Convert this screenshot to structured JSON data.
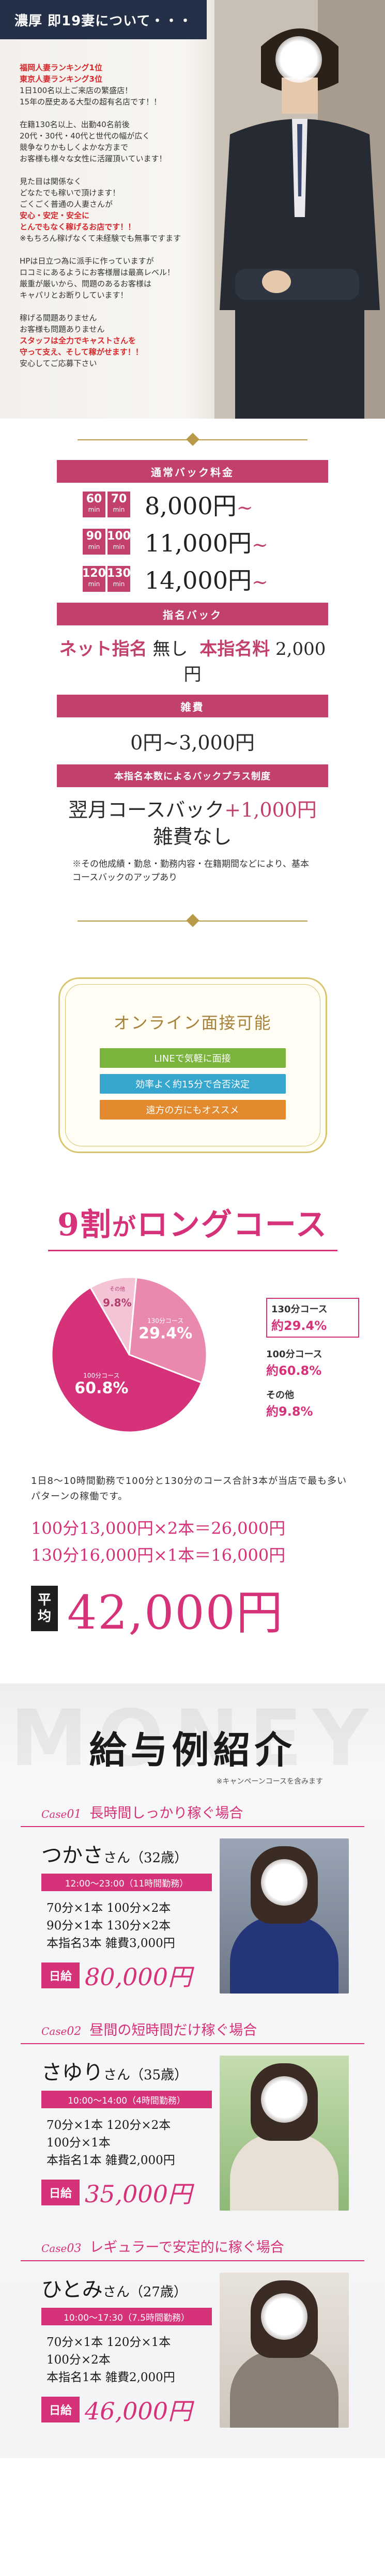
{
  "hero": {
    "title": "濃厚 即19妻について・・・",
    "lines": [
      {
        "text": "福岡人妻ランキング1位",
        "red": true
      },
      {
        "text": "東京人妻ランキング3位",
        "red": true
      },
      {
        "text": "1日100名以上ご来店の繁盛店！",
        "red": false
      },
      {
        "text": "15年の歴史ある大型の超有名店です！！",
        "red": false
      },
      {
        "text": "",
        "red": false
      },
      {
        "text": "在籍130名以上、出勤40名前後",
        "red": false
      },
      {
        "text": "20代・30代・40代と世代の幅が広く",
        "red": false
      },
      {
        "text": "競争なりかもしくよかな方まで",
        "red": false
      },
      {
        "text": "お客様も様々な女性に活躍頂いています！",
        "red": false
      },
      {
        "text": "",
        "red": false
      },
      {
        "text": "見た目は関係なく",
        "red": false
      },
      {
        "text": "どなたでも稼いで頂けます！",
        "red": false
      },
      {
        "text": "ごくごく普通の人妻さんが",
        "red": false
      },
      {
        "text": "安心・安定・安全に",
        "red": true
      },
      {
        "text": "とんでもなく稼げるお店です！！",
        "red": true
      },
      {
        "text": "※もちろん稼げなくて未経験でも無事ですます",
        "red": false
      },
      {
        "text": "",
        "red": false
      },
      {
        "text": "HPは日立つ為に派手に作っていますが",
        "red": false
      },
      {
        "text": "ロコミにあるようにお客様層は最高レベル！",
        "red": false
      },
      {
        "text": "厳重が厳いから、問題のあるお客様は",
        "red": false
      },
      {
        "text": "キャパリとお断りしています！",
        "red": false
      },
      {
        "text": "",
        "red": false
      },
      {
        "text": "稼げる間題ありません",
        "red": false
      },
      {
        "text": "お客様も問題ありません",
        "red": false
      },
      {
        "text": "スタッフは全力でキャストさんを",
        "red": true
      },
      {
        "text": "守って支え、そして稼がせます！！",
        "red": true
      },
      {
        "text": "安心してご応募下さい",
        "red": false
      }
    ]
  },
  "pricing": {
    "basic_header": "通常バック料金",
    "rows": [
      {
        "m1": "60",
        "m2": "70",
        "unit": "min",
        "price": "8,000円",
        "tilde": "~"
      },
      {
        "m1": "90",
        "m2": "100",
        "unit": "min",
        "price": "11,000円",
        "tilde": "~"
      },
      {
        "m1": "120",
        "m2": "130",
        "unit": "min",
        "price": "14,000円",
        "tilde": "~"
      }
    ],
    "nomination_header": "指名バック",
    "nomination_text_a": "ネット指名",
    "nomination_text_b": "無し",
    "nomination_text_c": "本指名料",
    "nomination_text_d": "2,000円",
    "misc_header": "雑費",
    "misc_text": "0円~3,000円",
    "bonus_header": "本指名本数によるバックプラス制度",
    "bonus_line1_a": "翌月コースバック",
    "bonus_line1_b": "+1,000円",
    "bonus_line2": "雑費なし",
    "note": "※その他成績・勤怠・勤務内容・在籍期間などにより、基本コースバックのアップあり"
  },
  "interview": {
    "title": "オンライン面接可能",
    "chips": [
      "LINEで気軽に面接",
      "効率よく約15分で合否決定",
      "遠方の方にもオススメ"
    ]
  },
  "long_course": {
    "title_big": "9割",
    "title_small": "が",
    "title_rest": "ロングコース",
    "legend": [
      {
        "label": "130分コース",
        "value": "約29.4%"
      },
      {
        "label": "100分コース",
        "value": "約60.8%"
      },
      {
        "label": "その他",
        "value": "約9.8%"
      }
    ],
    "description": "1日8～10時間勤務で100分と130分のコース合計3本が当店で最も多いパターンの稼働です。",
    "calc_line1": "100分13,000円×2本＝26,000円",
    "calc_line2": "130分16,000円×1本＝16,000円",
    "avg_badge_1": "平",
    "avg_badge_2": "均",
    "avg_amount": "42,000円"
  },
  "chart_data": {
    "type": "pie",
    "categories": [
      "100分コース",
      "130分コース",
      "その他"
    ],
    "values": [
      60.8,
      29.4,
      9.8
    ],
    "slice_labels": [
      "60.8%",
      "29.4%",
      "9.8%"
    ],
    "colors": [
      "#d6327a",
      "#e989ad",
      "#f4c4d6"
    ]
  },
  "salary": {
    "bg_word": "MONEY",
    "title": "給与例紹介",
    "sub": "※キャンペーンコースを含みます",
    "cases": [
      {
        "case_label": "Case",
        "case_no": "01",
        "heading": "長時間しっかり稼ぐ場合",
        "name": "つかさ",
        "suffix": "さん（32歳）",
        "hours": "12:00～23:00（11時間勤務）",
        "lines": [
          "70分×1本 100分×2本",
          "90分×1本 130分×2本",
          "本指名3本 雑費3,000円"
        ],
        "total_label": "日給",
        "total": "80,000円"
      },
      {
        "case_label": "Case",
        "case_no": "02",
        "heading": "昼間の短時間だけ稼ぐ場合",
        "name": "さゆり",
        "suffix": "さん（35歳）",
        "hours": "10:00～14:00（4時間勤務）",
        "lines": [
          "70分×1本 120分×2本",
          "100分×1本",
          "本指名1本 雑費2,000円"
        ],
        "total_label": "日給",
        "total": "35,000円"
      },
      {
        "case_label": "Case",
        "case_no": "03",
        "heading": "レギュラーで安定的に稼ぐ場合",
        "name": "ひとみ",
        "suffix": "さん（27歳）",
        "hours": "10:00～17:30（7.5時間勤務）",
        "lines": [
          "70分×1本 120分×1本",
          "100分×2本",
          "本指名1本 雑費2,000円"
        ],
        "total_label": "日給",
        "total": "46,000円"
      }
    ]
  }
}
